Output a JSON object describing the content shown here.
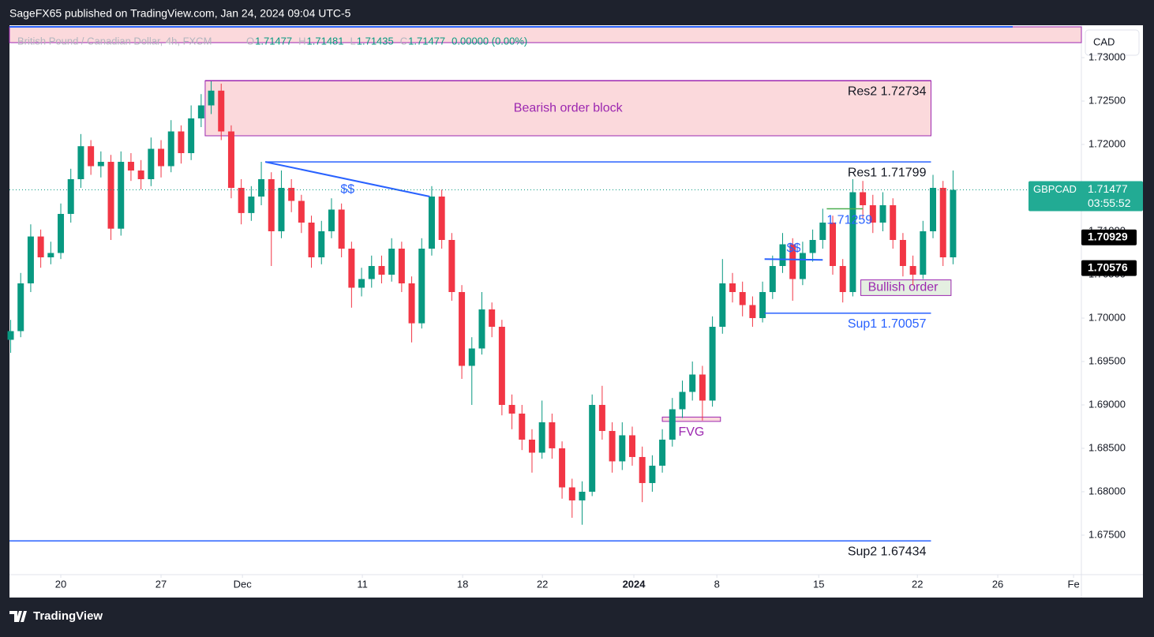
{
  "header": "SageFX65 published on TradingView.com, Jan 24, 2024 09:04 UTC-5",
  "footer": "TradingView",
  "chart_data": {
    "type": "candlestick",
    "legend": {
      "name": "British Pound / Canadian Dollar, 4h, FXCM",
      "o_label": "O",
      "open": 1.71477,
      "h_label": "H",
      "high": 1.71481,
      "l_label": "L",
      "low": 1.71435,
      "c_label": "C",
      "close": 1.71477,
      "change": "0.00000 (0.00%)"
    },
    "currency": "CAD",
    "symbol": "GBPCAD",
    "last_price": 1.71477,
    "countdown": "03:55:52",
    "price_labels": [
      1.70929,
      1.70576
    ],
    "up_color": "#089981",
    "down_color": "#f23645",
    "x": [
      -2.5,
      -2.0,
      -1.5,
      -1.0,
      -0.5,
      0.0,
      0.5,
      1.0,
      1.5,
      2.0,
      2.5,
      3.0,
      3.5,
      4.0,
      4.5,
      5.0,
      5.5,
      6.0,
      6.5,
      7.0,
      7.5,
      8.0,
      8.5,
      9.0,
      9.5,
      10.0,
      10.5,
      11.0,
      11.5,
      12.0,
      12.5,
      13.0,
      13.5,
      14.0,
      14.5,
      15.0,
      15.5,
      16.0,
      16.5,
      17.0,
      17.5,
      18.0,
      18.5,
      19.0,
      19.5,
      20.0,
      20.5,
      21.0,
      21.5,
      22.0,
      22.5,
      23.0,
      23.5,
      24.0,
      24.5,
      25.0,
      25.5,
      26.0,
      26.5,
      27.0,
      27.5,
      28.0,
      28.5,
      29.0,
      29.5,
      30.0,
      30.5,
      31.0,
      31.5,
      32.0,
      32.5,
      33.0,
      33.5,
      34.0,
      34.5,
      35.0,
      35.5,
      36.0,
      36.5,
      37.0,
      37.5,
      38.0,
      38.5,
      39.0,
      39.5,
      40.0,
      40.5,
      41.0,
      41.5,
      42.0,
      42.5,
      43.0,
      43.5,
      44.0,
      44.5
    ],
    "open": [
      1.6975,
      1.6985,
      1.704,
      1.7094,
      1.707,
      1.7075,
      1.712,
      1.716,
      1.7198,
      1.7175,
      1.718,
      1.7103,
      1.718,
      1.717,
      1.716,
      1.7195,
      1.7175,
      1.7215,
      1.719,
      1.723,
      1.7245,
      1.7262,
      1.7215,
      1.715,
      1.7121,
      1.714,
      1.716,
      1.71,
      1.715,
      1.7135,
      1.711,
      1.707,
      1.71,
      1.7125,
      1.708,
      1.7035,
      1.7045,
      1.706,
      1.705,
      1.708,
      1.704,
      1.6994,
      1.708,
      1.714,
      1.709,
      1.703,
      1.6945,
      1.6965,
      1.701,
      1.699,
      1.69,
      1.689,
      1.686,
      1.6845,
      1.688,
      1.685,
      1.6805,
      1.679,
      1.68,
      1.69,
      1.687,
      1.6835,
      1.6865,
      1.684,
      1.681,
      1.683,
      1.686,
      1.6895,
      1.6915,
      1.6935,
      1.6905,
      1.699,
      1.704,
      1.703,
      1.7015,
      1.7,
      1.703,
      1.706,
      1.7085,
      1.7045,
      1.7075,
      1.709,
      1.711,
      1.706,
      1.703,
      1.7145,
      1.713,
      1.711,
      1.713,
      1.709,
      1.706,
      1.705,
      1.71,
      1.715,
      1.707
    ],
    "high": [
      1.6998,
      1.7052,
      1.7108,
      1.7102,
      1.7088,
      1.7132,
      1.7172,
      1.7212,
      1.7205,
      1.7192,
      1.7188,
      1.7192,
      1.719,
      1.7182,
      1.7208,
      1.7205,
      1.7228,
      1.7222,
      1.7245,
      1.7258,
      1.7273,
      1.727,
      1.7222,
      1.716,
      1.7152,
      1.718,
      1.7168,
      1.717,
      1.716,
      1.7142,
      1.7118,
      1.7112,
      1.7138,
      1.7132,
      1.7088,
      1.7058,
      1.7072,
      1.7072,
      1.7092,
      1.7088,
      1.7048,
      1.7092,
      1.7152,
      1.7148,
      1.7098,
      1.7038,
      1.6978,
      1.703,
      1.7018,
      1.6998,
      1.6912,
      1.69,
      1.6872,
      1.6905,
      1.689,
      1.6858,
      1.6815,
      1.6812,
      1.6912,
      1.6922,
      1.688,
      1.688,
      1.6875,
      1.6852,
      1.6842,
      1.6872,
      1.6908,
      1.6928,
      1.695,
      1.6945,
      1.7002,
      1.7068,
      1.7052,
      1.7042,
      1.7025,
      1.7042,
      1.7072,
      1.7098,
      1.7092,
      1.7088,
      1.7102,
      1.7126,
      1.7118,
      1.7068,
      1.716,
      1.7158,
      1.7142,
      1.7145,
      1.7138,
      1.7098,
      1.7072,
      1.7112,
      1.7165,
      1.7158,
      1.717
    ],
    "low": [
      1.696,
      1.6978,
      1.703,
      1.7058,
      1.7062,
      1.7068,
      1.711,
      1.715,
      1.7165,
      1.7162,
      1.709,
      1.7095,
      1.7158,
      1.7148,
      1.7152,
      1.7162,
      1.7168,
      1.7178,
      1.7182,
      1.722,
      1.7235,
      1.7205,
      1.7138,
      1.7108,
      1.7112,
      1.713,
      1.706,
      1.7092,
      1.7122,
      1.7098,
      1.7058,
      1.7062,
      1.7092,
      1.707,
      1.7012,
      1.7025,
      1.7035,
      1.704,
      1.7042,
      1.703,
      1.6972,
      1.6988,
      1.7072,
      1.708,
      1.702,
      1.693,
      1.69,
      1.6958,
      1.6978,
      1.6888,
      1.6872,
      1.6848,
      1.6822,
      1.6838,
      1.6838,
      1.6792,
      1.677,
      1.6762,
      1.6795,
      1.686,
      1.6822,
      1.6825,
      1.683,
      1.6788,
      1.68,
      1.6822,
      1.6852,
      1.6885,
      1.6905,
      1.6882,
      1.6898,
      1.6982,
      1.7018,
      1.7002,
      1.699,
      1.6995,
      1.7022,
      1.7052,
      1.702,
      1.7038,
      1.7065,
      1.708,
      1.705,
      1.7018,
      1.7025,
      1.7115,
      1.7098,
      1.71,
      1.708,
      1.7048,
      1.7038,
      1.7045,
      1.7092,
      1.706,
      1.7062
    ],
    "close": [
      1.6985,
      1.704,
      1.7094,
      1.707,
      1.7075,
      1.712,
      1.716,
      1.7198,
      1.7175,
      1.718,
      1.7103,
      1.718,
      1.717,
      1.716,
      1.7195,
      1.7175,
      1.7215,
      1.719,
      1.723,
      1.7245,
      1.7262,
      1.7215,
      1.715,
      1.7121,
      1.714,
      1.716,
      1.71,
      1.715,
      1.7135,
      1.711,
      1.707,
      1.71,
      1.7125,
      1.708,
      1.7035,
      1.7045,
      1.706,
      1.705,
      1.708,
      1.704,
      1.6994,
      1.708,
      1.714,
      1.709,
      1.703,
      1.6945,
      1.6965,
      1.701,
      1.699,
      1.69,
      1.689,
      1.686,
      1.6845,
      1.688,
      1.685,
      1.6805,
      1.679,
      1.68,
      1.69,
      1.687,
      1.6835,
      1.6865,
      1.684,
      1.681,
      1.683,
      1.686,
      1.6895,
      1.6915,
      1.6935,
      1.6905,
      1.699,
      1.704,
      1.703,
      1.7015,
      1.7,
      1.703,
      1.706,
      1.7085,
      1.7045,
      1.7075,
      1.709,
      1.711,
      1.706,
      1.703,
      1.7145,
      1.713,
      1.711,
      1.713,
      1.709,
      1.706,
      1.705,
      1.71,
      1.715,
      1.707,
      1.71477
    ],
    "xlim": [
      -2.56,
      50.9
    ],
    "ylim": [
      1.67045,
      1.73373
    ],
    "xticks": [
      {
        "value": 0,
        "label": "20"
      },
      {
        "value": 5,
        "label": "27"
      },
      {
        "value": 9.06,
        "label": "Dec"
      },
      {
        "value": 15.04,
        "label": "11"
      },
      {
        "value": 20.04,
        "label": "18"
      },
      {
        "value": 24.02,
        "label": "22"
      },
      {
        "value": 28.58,
        "label": "2024"
      },
      {
        "value": 32.72,
        "label": "8"
      },
      {
        "value": 37.8,
        "label": "15"
      },
      {
        "value": 42.72,
        "label": "22"
      },
      {
        "value": 46.73,
        "label": "26"
      },
      {
        "value": 50.51,
        "label": "Fe"
      }
    ],
    "yticks": [
      {
        "value": 1.675,
        "label": "1.67500"
      },
      {
        "value": 1.68,
        "label": "1.68000"
      },
      {
        "value": 1.685,
        "label": "1.68500"
      },
      {
        "value": 1.69,
        "label": "1.69000"
      },
      {
        "value": 1.695,
        "label": "1.69500"
      },
      {
        "value": 1.7,
        "label": "1.70000"
      },
      {
        "value": 1.705,
        "label": "1.70500"
      },
      {
        "value": 1.71,
        "label": "1.71000"
      },
      {
        "value": 1.715,
        "label": "1.71500"
      },
      {
        "value": 1.72,
        "label": "1.72000"
      },
      {
        "value": 1.725,
        "label": "1.72500"
      },
      {
        "value": 1.73,
        "label": "1.73000"
      }
    ],
    "zones": [
      {
        "label": "Bearish order block",
        "x": [
          7.2,
          43.4
        ],
        "y": [
          1.721,
          1.72734
        ],
        "color": "#9c27b0"
      }
    ],
    "levels": [
      {
        "label": "Res2 1.72734",
        "value": 1.72734,
        "x": [
          7.2,
          43.4
        ],
        "color": "#131722",
        "line": "#9c27b0"
      },
      {
        "label": "Res1 1.71799",
        "value": 1.71799,
        "x": [
          10.2,
          43.4
        ],
        "color": "#131722",
        "line": "#2962ff"
      },
      {
        "label": "Sup1 1.70057",
        "value": 1.70057,
        "x": [
          35.1,
          43.4
        ],
        "color": "#2962ff",
        "line": "#2962ff"
      },
      {
        "label": "Sup2 1.67434",
        "value": 1.67434,
        "x": [
          -2.56,
          43.4
        ],
        "color": "#131722",
        "line": "#2962ff"
      },
      {
        "label": "1.71259",
        "value": 1.71259,
        "x": [
          38.2,
          40.0
        ],
        "color": "#2962ff",
        "line": "#4caf50"
      }
    ],
    "trendlines": [
      {
        "label": "$$",
        "x": [
          10.2,
          18.4
        ],
        "y": [
          1.71799,
          1.714
        ],
        "color": "#2962ff"
      },
      {
        "label": "$$",
        "x": [
          35.1,
          38.0
        ],
        "y": [
          1.7068,
          1.7067
        ],
        "color": "#2962ff"
      }
    ],
    "boxes": [
      {
        "label": "Bullish order",
        "x": [
          39.9,
          44.4
        ],
        "y": [
          1.7026,
          1.7044
        ],
        "color": "#9c27b0"
      },
      {
        "label": "FVG",
        "x": [
          30.0,
          32.9
        ],
        "y": [
          1.6881,
          1.6886
        ],
        "color": "#9c27b0"
      }
    ]
  }
}
